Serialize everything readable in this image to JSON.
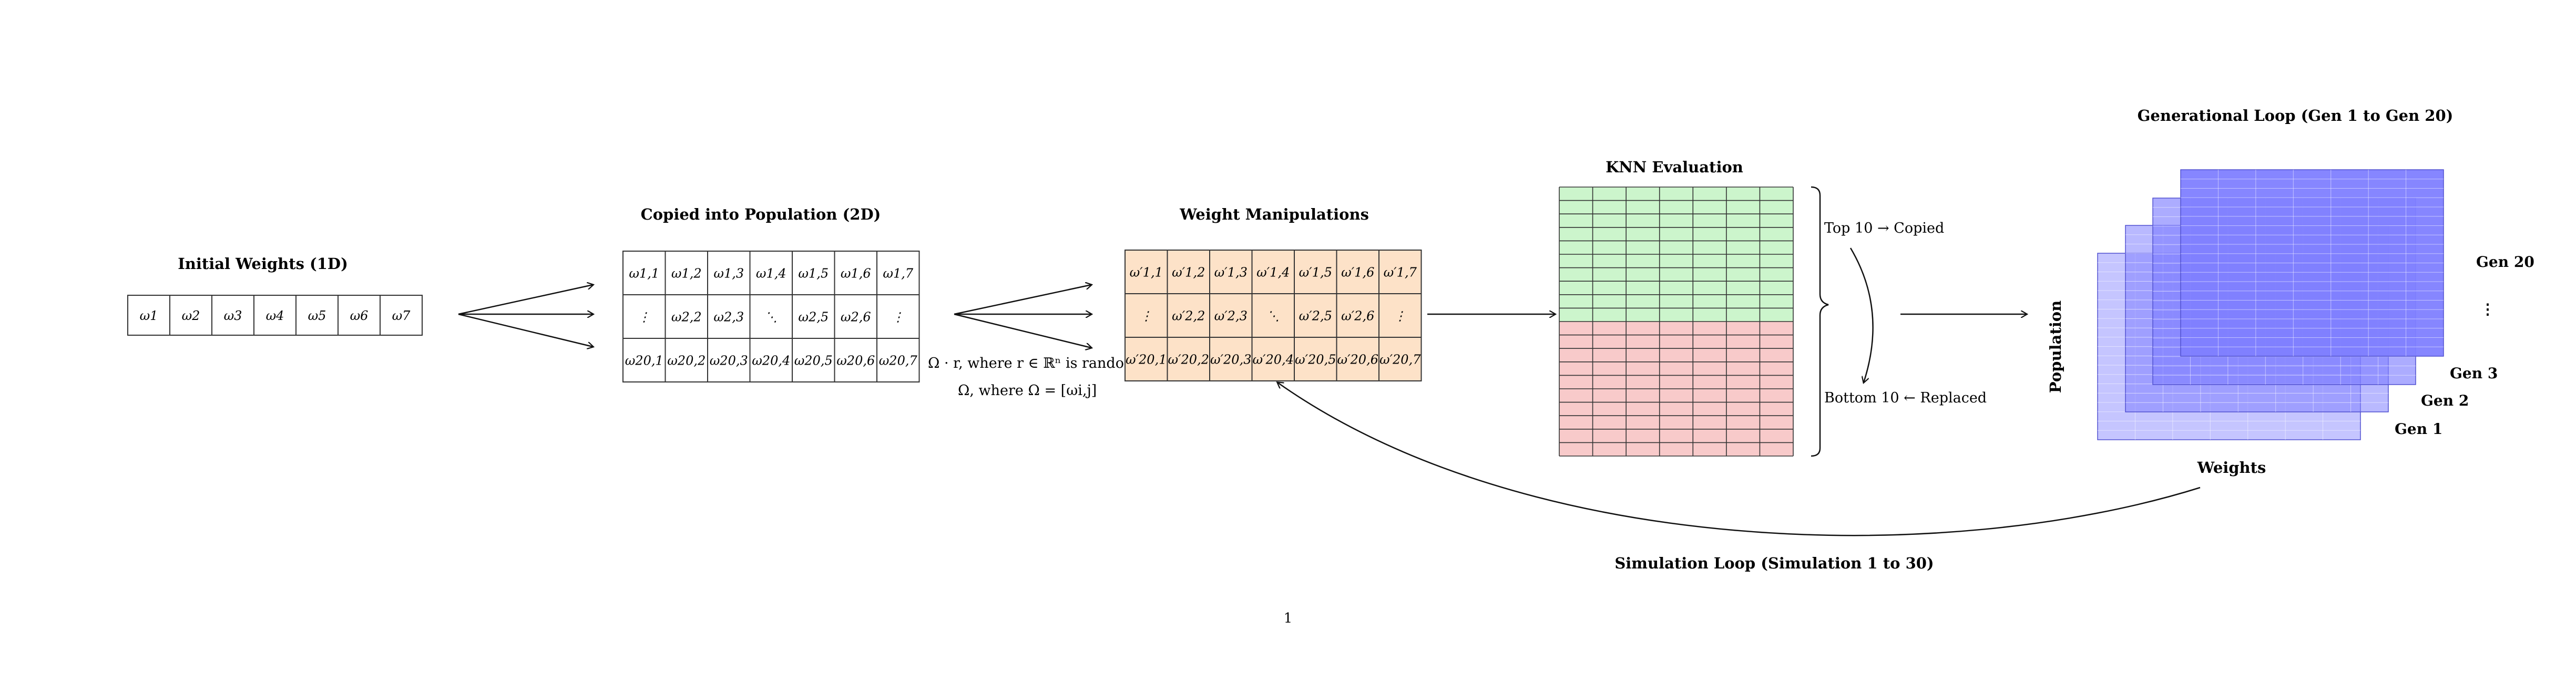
{
  "titles": {
    "initial": "Initial Weights (1D)",
    "copied": "Copied into Population (2D)",
    "manip": "Weight Manipulations",
    "knn": "KNN Evaluation",
    "genloop": "Generational Loop (Gen 1 to Gen 20)",
    "simloop": "Simulation Loop (Simulation 1 to 30)"
  },
  "initial_weights": [
    "ω1",
    "ω2",
    "ω3",
    "ω4",
    "ω5",
    "ω6",
    "ω7"
  ],
  "population_rows": [
    [
      "ω1,1",
      "ω1,2",
      "ω1,3",
      "ω1,4",
      "ω1,5",
      "ω1,6",
      "ω1,7"
    ],
    [
      "⋮",
      "ω2,2",
      "ω2,3",
      "⋱",
      "ω2,5",
      "ω2,6",
      "⋮"
    ],
    [
      "ω20,1",
      "ω20,2",
      "ω20,3",
      "ω20,4",
      "ω20,5",
      "ω20,6",
      "ω20,7"
    ]
  ],
  "manip_rows": [
    [
      "ω′1,1",
      "ω′1,2",
      "ω′1,3",
      "ω′1,4",
      "ω′1,5",
      "ω′1,6",
      "ω′1,7"
    ],
    [
      "⋮",
      "ω′2,2",
      "ω′2,3",
      "⋱",
      "ω′2,5",
      "ω′2,6",
      "⋮"
    ],
    [
      "ω′20,1",
      "ω′20,2",
      "ω′20,3",
      "ω′20,4",
      "ω′20,5",
      "ω′20,6",
      "ω′20,7"
    ]
  ],
  "formula1": "Ω · r,   where r ∈ ℝⁿ is random",
  "formula2": "Ω,  where Ω = [ωi,j]",
  "knn": {
    "top": "Top 10 → Copied",
    "bottom": "Bottom 10 ← Replaced",
    "rows": 20,
    "cols": 7,
    "top_color": "#ccf5cc",
    "bottom_color": "#f8caca"
  },
  "gens": {
    "labels": [
      "Gen 1",
      "Gen 2",
      "Gen 3",
      "⋮",
      "Gen 20"
    ],
    "population_label": "Population",
    "weights_label": "Weights",
    "color": "#7f7fff"
  },
  "page_number": "1",
  "colors": {
    "manip_fill": "#fde2c8",
    "grid": "#333333"
  }
}
